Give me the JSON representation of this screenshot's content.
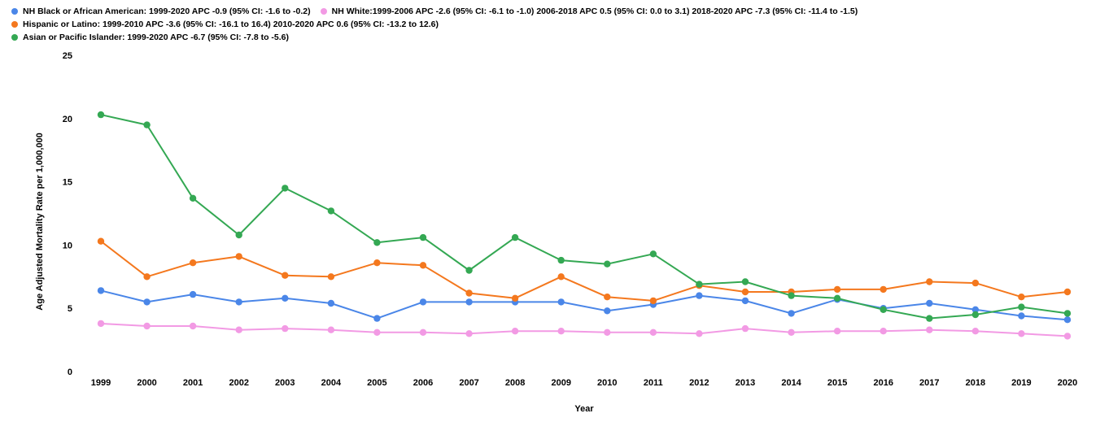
{
  "chart_data": {
    "type": "line",
    "xlabel": "Year",
    "ylabel": "Age Adjusted Mortality Rate per 1,000,000",
    "ylim": [
      0,
      25
    ],
    "yticks": [
      0,
      5,
      10,
      15,
      20,
      25
    ],
    "grid": false,
    "legend_position": "top-left",
    "categories": [
      "1999",
      "2000",
      "2001",
      "2002",
      "2003",
      "2004",
      "2005",
      "2006",
      "2007",
      "2008",
      "2009",
      "2010",
      "2011",
      "2012",
      "2013",
      "2014",
      "2015",
      "2016",
      "2017",
      "2018",
      "2019",
      "2020"
    ],
    "legend_rows": [
      [
        0,
        1
      ],
      [
        2
      ],
      [
        3
      ]
    ],
    "series": [
      {
        "name": "NH Black or African American: 1999-2020 APC -0.9 (95% CI: -1.6 to -0.2)",
        "color": "#4a86e8",
        "values": [
          6.4,
          5.5,
          6.1,
          5.5,
          5.8,
          5.4,
          4.2,
          5.5,
          5.5,
          5.5,
          5.5,
          4.8,
          5.3,
          6.0,
          5.6,
          4.6,
          5.7,
          5.0,
          5.4,
          4.9,
          4.4,
          4.1
        ]
      },
      {
        "name": "NH White:1999-2006 APC -2.6 (95% CI: -6.1 to -1.0) 2006-2018 APC 0.5 (95% CI: 0.0 to 3.1) 2018-2020 APC -7.3 (95% CI: -11.4 to -1.5)",
        "color": "#f29ae4",
        "values": [
          3.8,
          3.6,
          3.6,
          3.3,
          3.4,
          3.3,
          3.1,
          3.1,
          3.0,
          3.2,
          3.2,
          3.1,
          3.1,
          3.0,
          3.4,
          3.1,
          3.2,
          3.2,
          3.3,
          3.2,
          3.0,
          2.8
        ]
      },
      {
        "name": "Hispanic or Latino: 1999-2010 APC -3.6 (95% CI: -16.1 to 16.4) 2010-2020 APC 0.6 (95% CI: -13.2 to 12.6)",
        "color": "#f4781e",
        "values": [
          10.3,
          7.5,
          8.6,
          9.1,
          7.6,
          7.5,
          8.6,
          8.4,
          6.2,
          5.8,
          7.5,
          5.9,
          5.6,
          6.8,
          6.3,
          6.3,
          6.5,
          6.5,
          7.1,
          7.0,
          5.9,
          6.3
        ]
      },
      {
        "name": "Asian or Pacific Islander: 1999-2020 APC -6.7 (95% CI: -7.8 to -5.6)",
        "color": "#34a853",
        "values": [
          20.3,
          19.5,
          13.7,
          10.8,
          14.5,
          12.7,
          10.2,
          10.6,
          8.0,
          10.6,
          8.8,
          8.5,
          9.3,
          6.9,
          7.1,
          6.0,
          5.8,
          4.9,
          4.2,
          4.5,
          5.1,
          4.6
        ]
      }
    ]
  }
}
